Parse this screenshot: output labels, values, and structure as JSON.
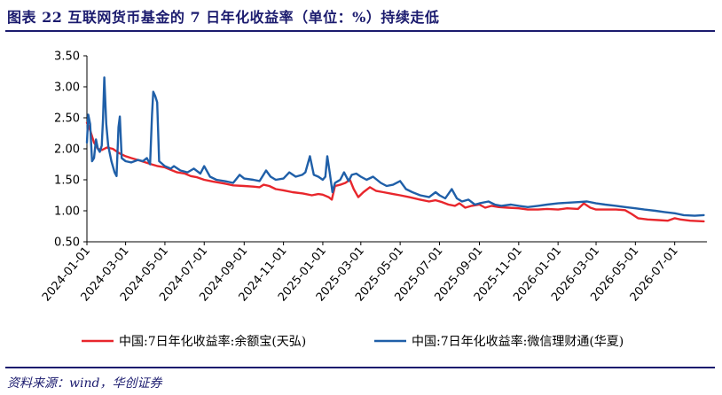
{
  "header": {
    "title": "图表 22   互联网货币基金的 7 日年化收益率（单位：%）持续走低"
  },
  "footer": {
    "source": "资料来源：wind，华创证券"
  },
  "chart_data": {
    "type": "line",
    "title": "",
    "xlabel": "",
    "ylabel": "",
    "ylim": [
      0.5,
      3.5
    ],
    "yticks": [
      "3.50",
      "3.00",
      "2.50",
      "2.00",
      "1.50",
      "1.00",
      "0.50"
    ],
    "ytick_values": [
      3.5,
      3.0,
      2.5,
      2.0,
      1.5,
      1.0,
      0.5
    ],
    "xlim": [
      "2024-01-01",
      "2026-08-20"
    ],
    "xticks": [
      "2024-01-01",
      "2024-03-01",
      "2024-05-01",
      "2024-07-01",
      "2024-09-01",
      "2024-11-01",
      "2025-01-01",
      "2025-03-01",
      "2025-05-01",
      "2025-07-01",
      "2025-09-01",
      "2025-11-01",
      "2026-01-01",
      "2026-03-01",
      "2026-05-01",
      "2026-07-01"
    ],
    "grid": false,
    "legend_position": "bottom",
    "series": [
      {
        "name": "中国:7日年化收益率:余额宝(天弘)",
        "color": "#e8262c",
        "points": [
          [
            "2024-01-01",
            2.42
          ],
          [
            "2024-01-06",
            2.3
          ],
          [
            "2024-01-12",
            2.1
          ],
          [
            "2024-01-18",
            2.0
          ],
          [
            "2024-01-24",
            1.98
          ],
          [
            "2024-02-01",
            2.02
          ],
          [
            "2024-02-10",
            2.0
          ],
          [
            "2024-02-20",
            1.93
          ],
          [
            "2024-03-01",
            1.88
          ],
          [
            "2024-03-10",
            1.85
          ],
          [
            "2024-03-20",
            1.82
          ],
          [
            "2024-04-01",
            1.78
          ],
          [
            "2024-04-10",
            1.75
          ],
          [
            "2024-04-20",
            1.72
          ],
          [
            "2024-05-01",
            1.7
          ],
          [
            "2024-05-10",
            1.66
          ],
          [
            "2024-05-20",
            1.62
          ],
          [
            "2024-06-01",
            1.6
          ],
          [
            "2024-06-10",
            1.56
          ],
          [
            "2024-06-20",
            1.54
          ],
          [
            "2024-07-01",
            1.5
          ],
          [
            "2024-07-15",
            1.47
          ],
          [
            "2024-08-01",
            1.44
          ],
          [
            "2024-08-15",
            1.41
          ],
          [
            "2024-09-01",
            1.4
          ],
          [
            "2024-09-15",
            1.39
          ],
          [
            "2024-09-25",
            1.38
          ],
          [
            "2024-10-01",
            1.42
          ],
          [
            "2024-10-10",
            1.4
          ],
          [
            "2024-10-20",
            1.35
          ],
          [
            "2024-11-01",
            1.33
          ],
          [
            "2024-11-15",
            1.3
          ],
          [
            "2024-12-01",
            1.28
          ],
          [
            "2024-12-15",
            1.25
          ],
          [
            "2024-12-25",
            1.27
          ],
          [
            "2025-01-01",
            1.26
          ],
          [
            "2025-01-10",
            1.22
          ],
          [
            "2025-01-15",
            1.18
          ],
          [
            "2025-01-20",
            1.4
          ],
          [
            "2025-01-28",
            1.42
          ],
          [
            "2025-02-05",
            1.45
          ],
          [
            "2025-02-12",
            1.5
          ],
          [
            "2025-02-18",
            1.35
          ],
          [
            "2025-02-25",
            1.22
          ],
          [
            "2025-03-05",
            1.3
          ],
          [
            "2025-03-15",
            1.38
          ],
          [
            "2025-03-25",
            1.32
          ],
          [
            "2025-04-05",
            1.3
          ],
          [
            "2025-04-20",
            1.27
          ],
          [
            "2025-05-01",
            1.25
          ],
          [
            "2025-05-15",
            1.22
          ],
          [
            "2025-06-01",
            1.18
          ],
          [
            "2025-06-15",
            1.15
          ],
          [
            "2025-06-25",
            1.17
          ],
          [
            "2025-07-05",
            1.14
          ],
          [
            "2025-07-15",
            1.1
          ],
          [
            "2025-07-25",
            1.08
          ],
          [
            "2025-08-01",
            1.12
          ],
          [
            "2025-08-10",
            1.05
          ],
          [
            "2025-08-20",
            1.08
          ],
          [
            "2025-09-01",
            1.1
          ],
          [
            "2025-09-10",
            1.05
          ],
          [
            "2025-09-20",
            1.08
          ],
          [
            "2025-10-01",
            1.06
          ],
          [
            "2025-10-15",
            1.05
          ],
          [
            "2025-11-01",
            1.04
          ],
          [
            "2025-11-15",
            1.02
          ],
          [
            "2025-12-01",
            1.02
          ],
          [
            "2025-12-15",
            1.03
          ],
          [
            "2026-01-01",
            1.02
          ],
          [
            "2026-01-15",
            1.04
          ],
          [
            "2026-02-01",
            1.03
          ],
          [
            "2026-02-10",
            1.12
          ],
          [
            "2026-02-20",
            1.05
          ],
          [
            "2026-03-01",
            1.02
          ],
          [
            "2026-03-15",
            1.02
          ],
          [
            "2026-04-01",
            1.02
          ],
          [
            "2026-04-15",
            1.01
          ],
          [
            "2026-04-25",
            0.95
          ],
          [
            "2026-05-05",
            0.88
          ],
          [
            "2026-05-20",
            0.86
          ],
          [
            "2026-06-05",
            0.85
          ],
          [
            "2026-06-20",
            0.84
          ],
          [
            "2026-07-01",
            0.88
          ],
          [
            "2026-07-10",
            0.86
          ],
          [
            "2026-07-25",
            0.84
          ],
          [
            "2026-08-15",
            0.83
          ]
        ]
      },
      {
        "name": "中国:7日年化收益率:微信理财通(华夏)",
        "color": "#1f5fa8",
        "points": [
          [
            "2024-01-01",
            2.1
          ],
          [
            "2024-01-03",
            2.55
          ],
          [
            "2024-01-06",
            2.4
          ],
          [
            "2024-01-09",
            1.8
          ],
          [
            "2024-01-12",
            1.85
          ],
          [
            "2024-01-15",
            2.15
          ],
          [
            "2024-01-18",
            2.0
          ],
          [
            "2024-01-21",
            1.95
          ],
          [
            "2024-01-24",
            2.05
          ],
          [
            "2024-01-26",
            2.5
          ],
          [
            "2024-01-28",
            3.15
          ],
          [
            "2024-01-31",
            2.4
          ],
          [
            "2024-02-03",
            2.05
          ],
          [
            "2024-02-08",
            1.8
          ],
          [
            "2024-02-13",
            1.62
          ],
          [
            "2024-02-16",
            1.56
          ],
          [
            "2024-02-19",
            2.35
          ],
          [
            "2024-02-21",
            2.52
          ],
          [
            "2024-02-24",
            1.85
          ],
          [
            "2024-03-01",
            1.8
          ],
          [
            "2024-03-10",
            1.78
          ],
          [
            "2024-03-20",
            1.82
          ],
          [
            "2024-03-28",
            1.8
          ],
          [
            "2024-04-03",
            1.85
          ],
          [
            "2024-04-08",
            1.75
          ],
          [
            "2024-04-11",
            2.55
          ],
          [
            "2024-04-13",
            2.92
          ],
          [
            "2024-04-16",
            2.85
          ],
          [
            "2024-04-19",
            2.75
          ],
          [
            "2024-04-22",
            1.8
          ],
          [
            "2024-05-01",
            1.72
          ],
          [
            "2024-05-10",
            1.68
          ],
          [
            "2024-05-15",
            1.72
          ],
          [
            "2024-05-25",
            1.65
          ],
          [
            "2024-06-05",
            1.62
          ],
          [
            "2024-06-15",
            1.68
          ],
          [
            "2024-06-25",
            1.6
          ],
          [
            "2024-07-01",
            1.72
          ],
          [
            "2024-07-10",
            1.55
          ],
          [
            "2024-07-20",
            1.5
          ],
          [
            "2024-08-01",
            1.48
          ],
          [
            "2024-08-15",
            1.45
          ],
          [
            "2024-08-25",
            1.58
          ],
          [
            "2024-09-01",
            1.52
          ],
          [
            "2024-09-15",
            1.5
          ],
          [
            "2024-09-25",
            1.48
          ],
          [
            "2024-10-05",
            1.65
          ],
          [
            "2024-10-12",
            1.55
          ],
          [
            "2024-10-20",
            1.5
          ],
          [
            "2024-11-01",
            1.52
          ],
          [
            "2024-11-10",
            1.62
          ],
          [
            "2024-11-20",
            1.55
          ],
          [
            "2024-11-30",
            1.58
          ],
          [
            "2024-12-05",
            1.62
          ],
          [
            "2024-12-12",
            1.88
          ],
          [
            "2024-12-18",
            1.58
          ],
          [
            "2024-12-25",
            1.55
          ],
          [
            "2025-01-01",
            1.5
          ],
          [
            "2025-01-05",
            1.55
          ],
          [
            "2025-01-08",
            1.88
          ],
          [
            "2025-01-12",
            1.6
          ],
          [
            "2025-01-16",
            1.3
          ],
          [
            "2025-01-20",
            1.45
          ],
          [
            "2025-01-28",
            1.5
          ],
          [
            "2025-02-03",
            1.62
          ],
          [
            "2025-02-10",
            1.48
          ],
          [
            "2025-02-15",
            1.58
          ],
          [
            "2025-02-22",
            1.6
          ],
          [
            "2025-03-01",
            1.55
          ],
          [
            "2025-03-10",
            1.5
          ],
          [
            "2025-03-20",
            1.55
          ],
          [
            "2025-04-01",
            1.45
          ],
          [
            "2025-04-10",
            1.4
          ],
          [
            "2025-04-20",
            1.42
          ],
          [
            "2025-05-01",
            1.48
          ],
          [
            "2025-05-10",
            1.35
          ],
          [
            "2025-05-20",
            1.3
          ],
          [
            "2025-06-01",
            1.25
          ],
          [
            "2025-06-15",
            1.22
          ],
          [
            "2025-06-25",
            1.3
          ],
          [
            "2025-07-01",
            1.25
          ],
          [
            "2025-07-10",
            1.2
          ],
          [
            "2025-07-20",
            1.35
          ],
          [
            "2025-07-28",
            1.2
          ],
          [
            "2025-08-05",
            1.15
          ],
          [
            "2025-08-15",
            1.18
          ],
          [
            "2025-08-25",
            1.1
          ],
          [
            "2025-09-01",
            1.12
          ],
          [
            "2025-09-15",
            1.15
          ],
          [
            "2025-09-25",
            1.1
          ],
          [
            "2025-10-05",
            1.08
          ],
          [
            "2025-10-20",
            1.1
          ],
          [
            "2025-11-01",
            1.08
          ],
          [
            "2025-11-15",
            1.06
          ],
          [
            "2025-12-01",
            1.08
          ],
          [
            "2025-12-15",
            1.1
          ],
          [
            "2026-01-01",
            1.12
          ],
          [
            "2026-01-15",
            1.13
          ],
          [
            "2026-02-01",
            1.14
          ],
          [
            "2026-02-15",
            1.15
          ],
          [
            "2026-03-01",
            1.12
          ],
          [
            "2026-03-15",
            1.1
          ],
          [
            "2026-04-01",
            1.08
          ],
          [
            "2026-04-15",
            1.06
          ],
          [
            "2026-05-01",
            1.04
          ],
          [
            "2026-05-15",
            1.02
          ],
          [
            "2026-06-01",
            1.0
          ],
          [
            "2026-06-15",
            0.98
          ],
          [
            "2026-07-01",
            0.96
          ],
          [
            "2026-07-15",
            0.93
          ],
          [
            "2026-08-01",
            0.92
          ],
          [
            "2026-08-15",
            0.93
          ]
        ]
      }
    ]
  }
}
